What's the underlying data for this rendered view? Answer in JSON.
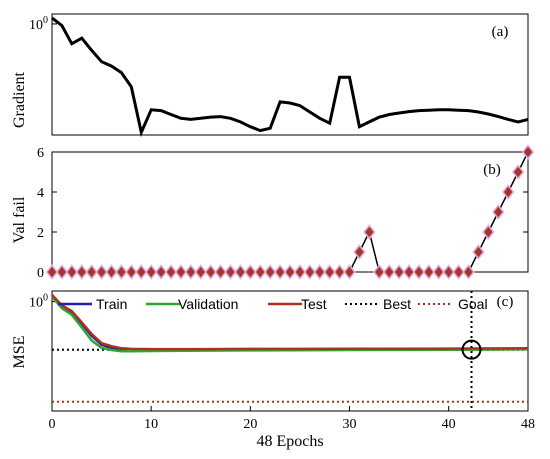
{
  "chart_data": [
    {
      "type": "line",
      "panel_label": "(a)",
      "ylabel": "Gradient",
      "yscale": "log",
      "y_tick_labels": [
        "10^0"
      ],
      "xlim": [
        0,
        48
      ],
      "series": [
        {
          "color": "#000000",
          "x": [
            0,
            1,
            2,
            3,
            4,
            5,
            6,
            7,
            8,
            9,
            10,
            11,
            12,
            13,
            14,
            15,
            16,
            17,
            18,
            19,
            20,
            21,
            22,
            23,
            24,
            25,
            26,
            27,
            28,
            29,
            30,
            31,
            32,
            33,
            34,
            35,
            36,
            37,
            38,
            39,
            40,
            41,
            42,
            43,
            44,
            45,
            46,
            47,
            48
          ],
          "y": [
            1.2,
            0.95,
            0.55,
            0.65,
            0.45,
            0.32,
            0.28,
            0.23,
            0.15,
            0.038,
            0.075,
            0.073,
            0.065,
            0.058,
            0.056,
            0.058,
            0.06,
            0.061,
            0.058,
            0.052,
            0.045,
            0.04,
            0.043,
            0.095,
            0.092,
            0.085,
            0.07,
            0.058,
            0.05,
            0.2,
            0.2,
            0.045,
            0.052,
            0.06,
            0.065,
            0.068,
            0.071,
            0.073,
            0.074,
            0.075,
            0.075,
            0.074,
            0.073,
            0.07,
            0.066,
            0.061,
            0.056,
            0.052,
            0.056
          ]
        }
      ]
    },
    {
      "type": "scatter",
      "panel_label": "(b)",
      "ylabel": "Val fail",
      "ylim": [
        0,
        6
      ],
      "y_ticks": [
        0,
        2,
        4,
        6
      ],
      "xlim": [
        0,
        48
      ],
      "marker": "diamond",
      "marker_fill": "#a0392a",
      "marker_edge": "#e8a8e0",
      "series": [
        {
          "color": "#000000",
          "x": [
            0,
            1,
            2,
            3,
            4,
            5,
            6,
            7,
            8,
            9,
            10,
            11,
            12,
            13,
            14,
            15,
            16,
            17,
            18,
            19,
            20,
            21,
            22,
            23,
            24,
            25,
            26,
            27,
            28,
            29,
            30,
            31,
            32,
            33,
            34,
            35,
            36,
            37,
            38,
            39,
            40,
            41,
            42,
            43,
            44,
            45,
            46,
            47,
            48
          ],
          "y": [
            0,
            0,
            0,
            0,
            0,
            0,
            0,
            0,
            0,
            0,
            0,
            0,
            0,
            0,
            0,
            0,
            0,
            0,
            0,
            0,
            0,
            0,
            0,
            0,
            0,
            0,
            0,
            0,
            0,
            0,
            0,
            1,
            2,
            0,
            0,
            0,
            0,
            0,
            0,
            0,
            0,
            0,
            0,
            1,
            2,
            3,
            4,
            5,
            6
          ]
        }
      ]
    },
    {
      "type": "line",
      "panel_label": "(c)",
      "ylabel": "MSE",
      "xlabel": "48 Epochs",
      "yscale": "log",
      "y_tick_labels": [
        "10^0"
      ],
      "xlim": [
        0,
        48
      ],
      "x_ticks": [
        0,
        10,
        20,
        30,
        40,
        48
      ],
      "best_epoch": 42,
      "legend_position": "top",
      "series": [
        {
          "name": "Train",
          "color": "#1f1fb4",
          "style": "solid",
          "x": [
            0,
            1,
            2,
            3,
            4,
            5,
            6,
            7,
            8,
            10,
            15,
            20,
            25,
            30,
            35,
            40,
            45,
            48
          ],
          "y": [
            1.3,
            0.8,
            0.62,
            0.38,
            0.22,
            0.15,
            0.13,
            0.12,
            0.118,
            0.118,
            0.119,
            0.12,
            0.12,
            0.121,
            0.121,
            0.122,
            0.123,
            0.124
          ]
        },
        {
          "name": "Validation",
          "color": "#2ea82e",
          "style": "solid",
          "x": [
            0,
            1,
            2,
            3,
            4,
            5,
            6,
            7,
            8,
            10,
            15,
            20,
            25,
            30,
            35,
            40,
            45,
            48
          ],
          "y": [
            1.25,
            0.75,
            0.56,
            0.32,
            0.18,
            0.13,
            0.118,
            0.112,
            0.112,
            0.113,
            0.115,
            0.116,
            0.117,
            0.118,
            0.119,
            0.12,
            0.121,
            0.122
          ]
        },
        {
          "name": "Test",
          "color": "#b03020",
          "style": "solid",
          "x": [
            0,
            1,
            2,
            3,
            4,
            5,
            6,
            7,
            8,
            10,
            15,
            20,
            25,
            30,
            35,
            40,
            45,
            48
          ],
          "y": [
            1.35,
            0.85,
            0.66,
            0.4,
            0.24,
            0.16,
            0.14,
            0.128,
            0.124,
            0.123,
            0.123,
            0.124,
            0.124,
            0.125,
            0.125,
            0.126,
            0.127,
            0.128
          ]
        },
        {
          "name": "Best",
          "color": "#000000",
          "style": "dotted",
          "x": [
            0,
            48
          ],
          "y": [
            0.12,
            0.12
          ]
        },
        {
          "name": "Goal",
          "color": "#b03020",
          "style": "dotted",
          "x": [
            0,
            48
          ],
          "y": [
            0.012,
            0.012
          ]
        }
      ]
    }
  ]
}
